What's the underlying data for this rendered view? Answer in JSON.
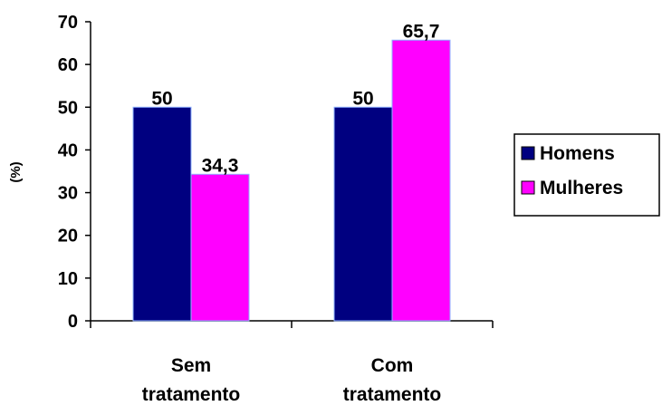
{
  "chart_data": {
    "type": "bar",
    "ylabel": "(%)",
    "ylim": [
      0,
      70
    ],
    "ytick_step": 10,
    "categories": [
      [
        "Sem",
        "tratamento"
      ],
      [
        "Com",
        "tratamento"
      ]
    ],
    "series": [
      {
        "name": "Homens",
        "color": "#000080",
        "values": [
          50,
          50
        ],
        "labels": [
          "50",
          "50"
        ]
      },
      {
        "name": "Mulheres",
        "color": "#FF00FF",
        "values": [
          34.3,
          65.7
        ],
        "labels": [
          "34,3",
          "65,7"
        ]
      }
    ],
    "legend_position": "right",
    "grid": false
  }
}
